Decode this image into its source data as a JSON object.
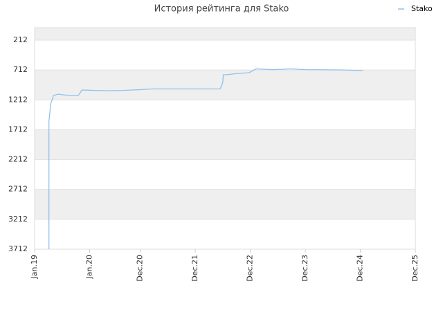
{
  "chart_data": {
    "type": "line",
    "title": "История рейтинга для Stako",
    "series": [
      {
        "name": "Stako",
        "color": "#8fc1ec",
        "x": [
          2019.26,
          2019.26,
          2019.28,
          2019.29,
          2019.3,
          2019.33,
          2019.34,
          2019.43,
          2019.53,
          2019.69,
          2019.79,
          2019.82,
          2019.86,
          2020.04,
          2020.36,
          2020.64,
          2020.89,
          2021.14,
          2022.37,
          2022.4,
          2022.42,
          2022.43,
          2022.52,
          2022.71,
          2022.9,
          2022.99,
          2023.03,
          2023.34,
          2023.65,
          2023.94,
          2024.57,
          2024.97
        ],
        "values": [
          3712,
          1568,
          1394,
          1301,
          1255,
          1186,
          1139,
          1116,
          1128,
          1139,
          1139,
          1104,
          1046,
          1052,
          1058,
          1052,
          1041,
          1029,
          1029,
          977,
          919,
          792,
          786,
          768,
          757,
          710,
          693,
          705,
          693,
          705,
          710,
          722
        ]
      }
    ],
    "xlim": [
      2019,
      2025.92
    ],
    "xticks": [
      {
        "value": 2019,
        "label": "Jan.19"
      },
      {
        "value": 2020,
        "label": "Jan.20"
      },
      {
        "value": 2020.92,
        "label": "Dec.20"
      },
      {
        "value": 2021.92,
        "label": "Dec.21"
      },
      {
        "value": 2022.92,
        "label": "Dec.22"
      },
      {
        "value": 2023.92,
        "label": "Dec.23"
      },
      {
        "value": 2024.92,
        "label": "Dec.24"
      },
      {
        "value": 2025.92,
        "label": "Dec.25"
      }
    ],
    "ylim": [
      3712,
      3
    ],
    "yticks": [
      212,
      712,
      1212,
      1712,
      2212,
      2712,
      3212,
      3712
    ],
    "grid": true,
    "legend": "top-right"
  }
}
